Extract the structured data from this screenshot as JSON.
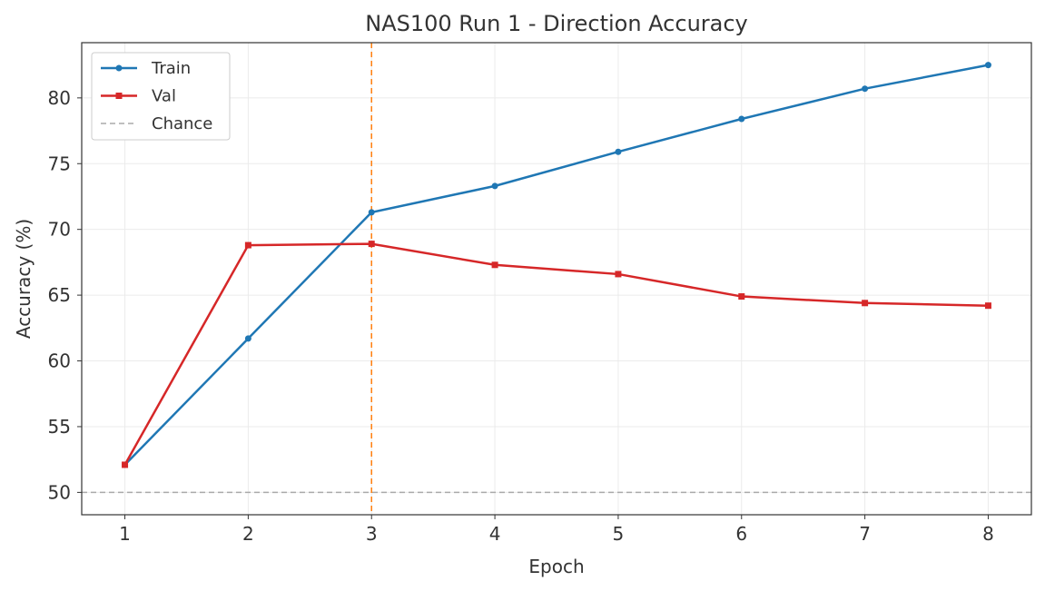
{
  "chart_data": {
    "type": "line",
    "title": "NAS100 Run 1 - Direction Accuracy",
    "xlabel": "Epoch",
    "ylabel": "Accuracy (%)",
    "x": [
      1,
      2,
      3,
      4,
      5,
      6,
      7,
      8
    ],
    "xlim": [
      0.65,
      8.35
    ],
    "ylim": [
      48.3,
      84.2
    ],
    "xticks": [
      "1",
      "2",
      "3",
      "4",
      "5",
      "6",
      "7",
      "8"
    ],
    "yticks": [
      50,
      55,
      60,
      65,
      70,
      75,
      80
    ],
    "grid": true,
    "legend_position": "top-left",
    "series": [
      {
        "name": "Train",
        "color": "#1f77b4",
        "marker": "circle",
        "values": [
          52.1,
          61.7,
          71.3,
          73.3,
          75.9,
          78.4,
          80.7,
          82.5
        ]
      },
      {
        "name": "Val",
        "color": "#d62728",
        "marker": "square",
        "values": [
          52.1,
          68.8,
          68.9,
          67.3,
          66.6,
          64.9,
          64.4,
          64.2
        ]
      }
    ],
    "reference_lines": [
      {
        "name": "Chance",
        "orientation": "horizontal",
        "value": 50,
        "color": "#aaaaaa",
        "style": "dashed"
      },
      {
        "orientation": "vertical",
        "value": 3,
        "color": "#ff7f0e",
        "style": "dashed"
      }
    ]
  }
}
